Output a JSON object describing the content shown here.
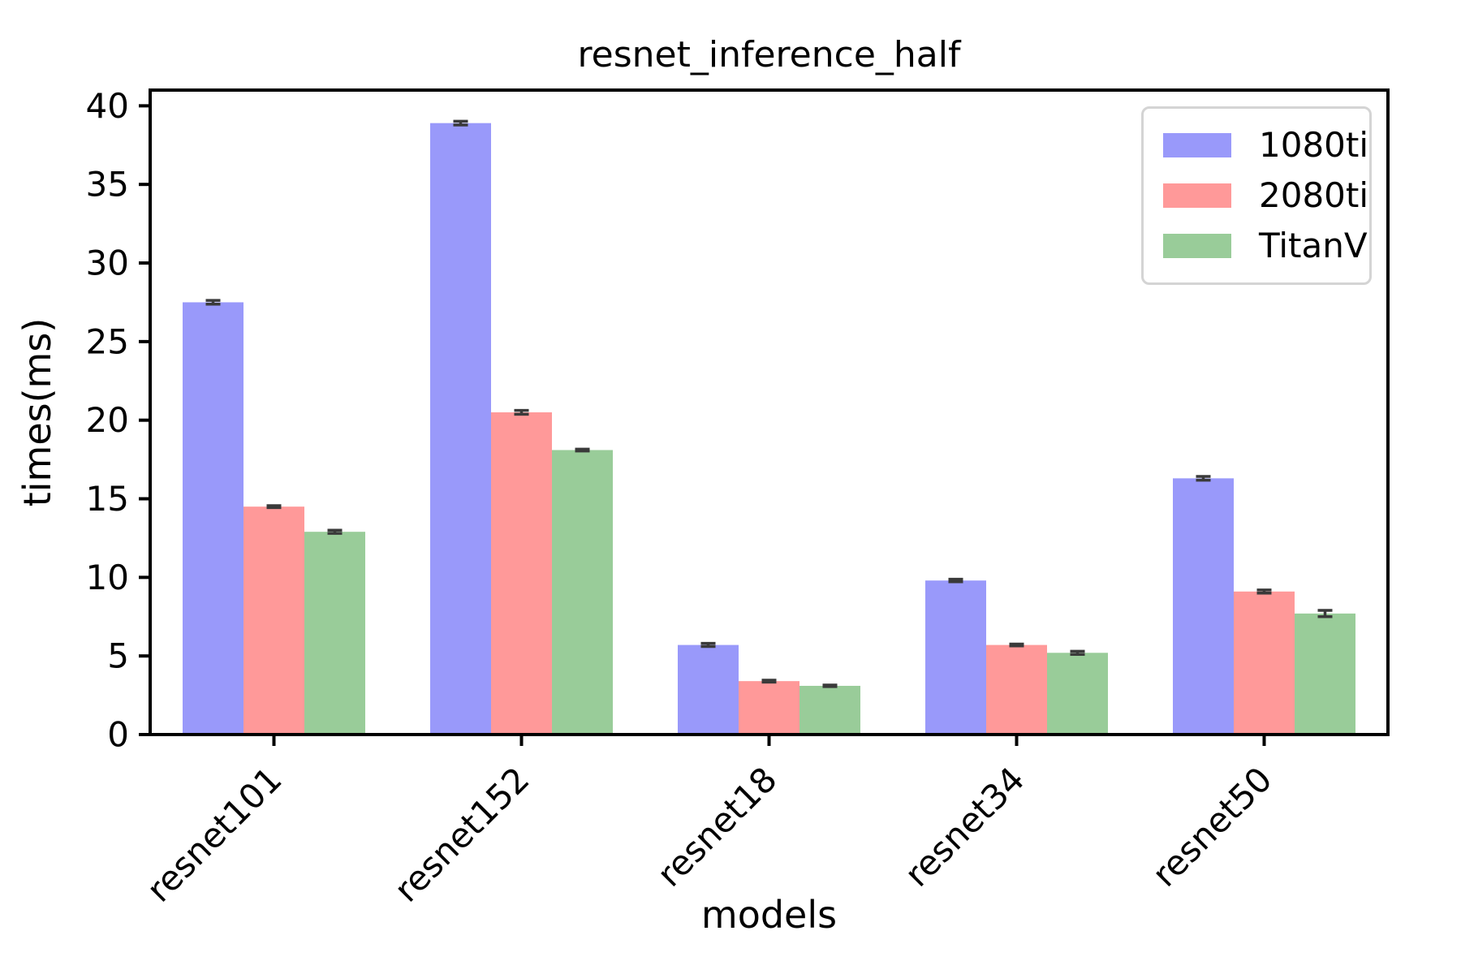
{
  "figure": {
    "background": "#ffffff",
    "spine_color": "#000000",
    "error_bar_color": "#3a3a3a",
    "legend_border_color": "#d4d4d4"
  },
  "chart_data": {
    "type": "bar",
    "title": "resnet_inference_half",
    "xlabel": "models",
    "ylabel": "times(ms)",
    "categories": [
      "resnet101",
      "resnet152",
      "resnet18",
      "resnet34",
      "resnet50"
    ],
    "series": [
      {
        "name": "1080ti",
        "color": "#9999fa",
        "values": [
          27.5,
          38.9,
          5.7,
          9.8,
          16.3
        ],
        "errors": [
          0.12,
          0.12,
          0.1,
          0.08,
          0.12
        ]
      },
      {
        "name": "2080ti",
        "color": "#ff9999",
        "values": [
          14.5,
          20.5,
          3.4,
          5.7,
          9.1
        ],
        "errors": [
          0.06,
          0.12,
          0.06,
          0.06,
          0.1
        ]
      },
      {
        "name": "TitanV",
        "color": "#99cc99",
        "values": [
          12.9,
          18.1,
          3.1,
          5.2,
          7.7
        ],
        "errors": [
          0.1,
          0.06,
          0.05,
          0.1,
          0.2
        ]
      }
    ],
    "ylim": [
      0,
      41
    ],
    "yticks": [
      0,
      5,
      10,
      15,
      20,
      25,
      30,
      35,
      40
    ],
    "x_tick_rotation": 45,
    "grid": false,
    "legend_position": "upper right"
  }
}
